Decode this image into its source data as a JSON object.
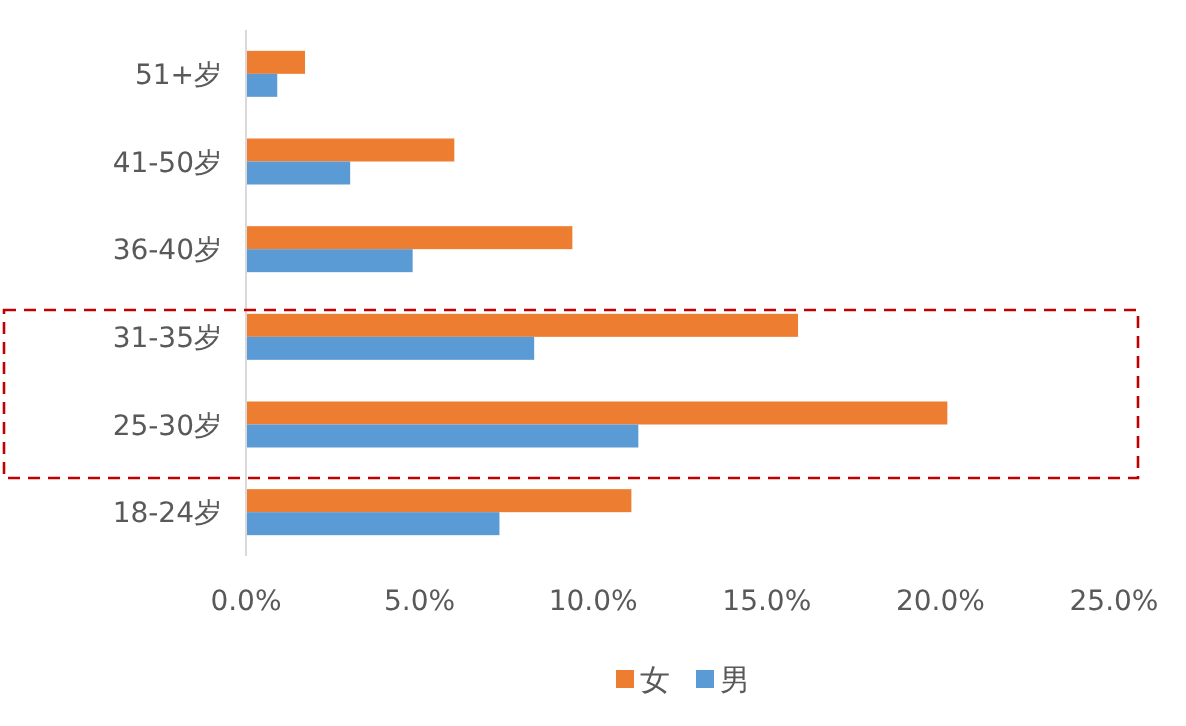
{
  "chart_data": {
    "type": "bar",
    "orientation": "horizontal",
    "categories": [
      "51+岁",
      "41-50岁",
      "36-40岁",
      "31-35岁",
      "25-30岁",
      "18-24岁"
    ],
    "series": [
      {
        "name": "女",
        "color": "#ed7d31",
        "values": [
          1.7,
          6.0,
          9.4,
          15.9,
          20.2,
          11.1
        ]
      },
      {
        "name": "男",
        "color": "#5b9bd5",
        "values": [
          0.9,
          3.0,
          4.8,
          8.3,
          11.3,
          7.3
        ]
      }
    ],
    "xlim": [
      0,
      25
    ],
    "xticks": [
      {
        "value": 0,
        "label": "0.0%"
      },
      {
        "value": 5,
        "label": "5.0%"
      },
      {
        "value": 10,
        "label": "10.0%"
      },
      {
        "value": 15,
        "label": "15.0%"
      },
      {
        "value": 20,
        "label": "20.0%"
      },
      {
        "value": 25,
        "label": "25.0%"
      }
    ],
    "grid": false,
    "legend": "bottom"
  }
}
